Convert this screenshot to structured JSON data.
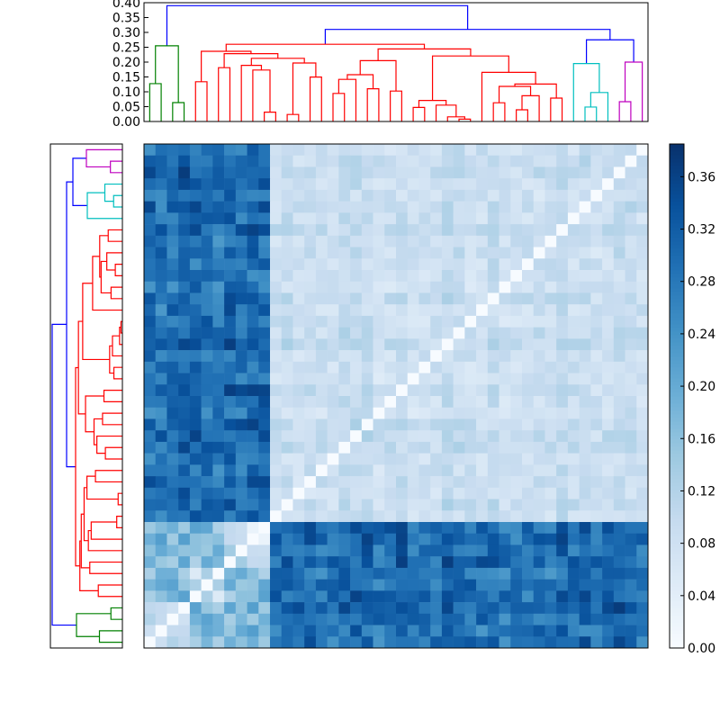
{
  "chart_data": {
    "type": "heatmap",
    "title": "",
    "n": 44,
    "clusters": [
      {
        "size": 4,
        "color": "#00bfbf"
      },
      {
        "size": 3,
        "color": "#bf00bf"
      },
      {
        "size": 4,
        "color": "#008000"
      },
      {
        "size": 33,
        "color": "#ff0000"
      }
    ],
    "top_dendrogram": {
      "yticks": [
        "0.00",
        "0.05",
        "0.10",
        "0.15",
        "0.20",
        "0.25",
        "0.30",
        "0.35",
        "0.40"
      ],
      "ylim": [
        0,
        0.4
      ],
      "root_height": 0.39,
      "link_color_above_threshold": "#0000ff",
      "merge_heights": {
        "blue": [
          0.39,
          0.31,
          0.275
        ],
        "red_top": 0.26,
        "green_top": 0.255,
        "cyan_top": 0.195,
        "magenta_top": 0.2
      }
    },
    "left_dendrogram": {
      "orientation": "left"
    },
    "colorbar": {
      "ticks": [
        "0.00",
        "0.04",
        "0.08",
        "0.12",
        "0.16",
        "0.20",
        "0.24",
        "0.28",
        "0.32",
        "0.36"
      ],
      "range": [
        0,
        0.385
      ],
      "colormap": "Blues"
    },
    "matrix_description_values": {
      "diagonal": 0.0,
      "within_red_cluster_min": 0.04,
      "within_red_cluster_max": 0.12,
      "red_vs_other_min": 0.2,
      "red_vs_other_max": 0.36,
      "max_value": 0.385
    }
  }
}
